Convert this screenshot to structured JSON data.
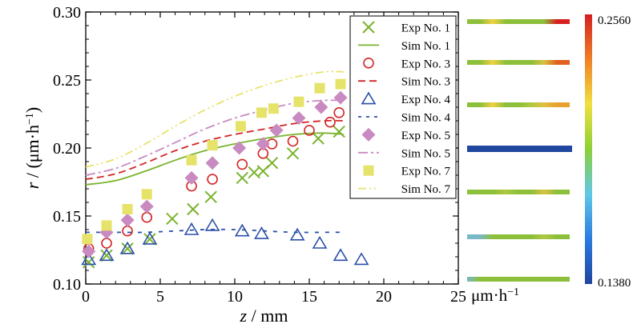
{
  "chart_data": {
    "type": "scatter",
    "xlabel_var": "z",
    "xlabel_unit": " / mm",
    "ylabel_var": "r",
    "ylabel_unit": " / (μm·h",
    "ylabel_unit_sup": "−1",
    "ylabel_unit_close": ")",
    "xlim": [
      0,
      25
    ],
    "ylim": [
      0.1,
      0.3
    ],
    "x_ticks": [
      "0",
      "5",
      "10",
      "15",
      "20",
      "25"
    ],
    "y_ticks": [
      "0.10",
      "0.15",
      "0.20",
      "0.25",
      "0.30"
    ],
    "grid": false,
    "legend_position": "top-right",
    "series": [
      {
        "name": "Exp No. 1",
        "kind": "exp",
        "marker": "x",
        "color": "#7ab32e",
        "x": [
          0.2,
          1.4,
          2.8,
          4.3,
          5.8,
          7.2,
          8.4,
          10.5,
          11.3,
          11.9,
          12.5,
          13.9,
          15.6,
          17.0
        ],
        "y": [
          0.116,
          0.121,
          0.126,
          0.133,
          0.148,
          0.155,
          0.164,
          0.178,
          0.182,
          0.183,
          0.189,
          0.196,
          0.207,
          0.212
        ]
      },
      {
        "name": "Sim No. 1",
        "kind": "sim",
        "dash": "",
        "color": "#7ab32e",
        "x": [
          0,
          2,
          4,
          6,
          8,
          10,
          12,
          14,
          16,
          17.3
        ],
        "y": [
          0.173,
          0.176,
          0.183,
          0.191,
          0.198,
          0.203,
          0.207,
          0.21,
          0.211,
          0.21
        ]
      },
      {
        "name": "Exp No. 3",
        "kind": "exp",
        "marker": "circle",
        "color": "#d42424",
        "x": [
          0.2,
          1.4,
          2.8,
          4.1,
          7.1,
          8.5,
          10.5,
          11.9,
          12.5,
          13.9,
          15.0,
          16.4,
          17.0
        ],
        "y": [
          0.126,
          0.13,
          0.139,
          0.149,
          0.172,
          0.177,
          0.188,
          0.196,
          0.203,
          0.205,
          0.213,
          0.219,
          0.226
        ]
      },
      {
        "name": "Sim No. 3",
        "kind": "sim",
        "dash": "9 5",
        "color": "#d42424",
        "x": [
          0,
          2,
          4,
          6,
          8,
          10,
          12,
          14,
          16,
          17.3
        ],
        "y": [
          0.177,
          0.181,
          0.189,
          0.198,
          0.205,
          0.21,
          0.214,
          0.218,
          0.22,
          0.22
        ]
      },
      {
        "name": "Exp No. 4",
        "kind": "exp",
        "marker": "triangle",
        "color": "#2a4fa8",
        "x": [
          0.2,
          1.4,
          2.8,
          4.3,
          7.1,
          8.5,
          10.5,
          11.8,
          14.2,
          15.7,
          17.1,
          18.5
        ],
        "y": [
          0.118,
          0.121,
          0.126,
          0.133,
          0.14,
          0.143,
          0.139,
          0.137,
          0.136,
          0.13,
          0.121,
          0.118
        ]
      },
      {
        "name": "Sim No. 4",
        "kind": "sim",
        "dash": "5 8",
        "color": "#2a4fa8",
        "x": [
          0,
          2,
          4,
          6,
          8,
          10,
          12,
          14,
          16,
          17.3
        ],
        "y": [
          0.138,
          0.138,
          0.138,
          0.139,
          0.14,
          0.14,
          0.139,
          0.138,
          0.138,
          0.138
        ]
      },
      {
        "name": "Exp No. 5",
        "kind": "exp",
        "marker": "diamond",
        "color": "#c88ac0",
        "x": [
          0.2,
          1.4,
          2.8,
          4.1,
          7.1,
          8.5,
          10.3,
          11.9,
          12.8,
          14.3,
          15.8,
          17.1
        ],
        "y": [
          0.124,
          0.138,
          0.147,
          0.157,
          0.178,
          0.189,
          0.2,
          0.203,
          0.213,
          0.222,
          0.23,
          0.237
        ]
      },
      {
        "name": "Sim No. 5",
        "kind": "sim",
        "dash": "12 4 3 4",
        "color": "#c88ac0",
        "x": [
          0,
          2,
          4,
          6,
          8,
          10,
          12,
          14,
          16,
          17.3
        ],
        "y": [
          0.18,
          0.185,
          0.194,
          0.204,
          0.214,
          0.222,
          0.228,
          0.233,
          0.235,
          0.235
        ]
      },
      {
        "name": "Exp No. 7",
        "kind": "exp",
        "marker": "square",
        "color": "#e6e36a",
        "x": [
          0.1,
          1.4,
          2.8,
          4.1,
          7.1,
          8.5,
          10.4,
          11.8,
          12.6,
          14.3,
          15.7,
          17.1
        ],
        "y": [
          0.133,
          0.143,
          0.155,
          0.166,
          0.191,
          0.202,
          0.216,
          0.226,
          0.229,
          0.234,
          0.244,
          0.247
        ]
      },
      {
        "name": "Sim No. 7",
        "kind": "sim",
        "dash": "10 4 2 4 2 4",
        "color": "#e6e36a",
        "x": [
          0,
          2,
          4,
          6,
          8,
          10,
          12,
          14,
          16,
          17.3
        ],
        "y": [
          0.186,
          0.192,
          0.203,
          0.216,
          0.228,
          0.238,
          0.246,
          0.252,
          0.256,
          0.256
        ]
      }
    ],
    "colorbar": {
      "max_label": "0.2560",
      "min_label": "0.1380",
      "unit_label": "μm·h",
      "unit_sup": "−1",
      "max": 0.256,
      "min": 0.138,
      "stops": [
        "#2045a0",
        "#2a7be0",
        "#60c8e8",
        "#8cd038",
        "#f0e040",
        "#f08028",
        "#d42020"
      ]
    },
    "color_strips": [
      {
        "colors": [
          "#8cbf3a",
          "#8cbf3a",
          "#f0d040",
          "#8cbf3a",
          "#8cbf3a",
          "#8cbf3a",
          "#8cbf3a",
          "#d82020",
          "#d82020"
        ]
      },
      {
        "colors": [
          "#8cbf3a",
          "#8cbf3a",
          "#f0d040",
          "#8cbf3a",
          "#8cbf3a",
          "#8cbf3a",
          "#d8c040",
          "#e06020",
          "#e06020"
        ]
      },
      {
        "colors": [
          "#8cbf3a",
          "#8cbf3a",
          "#f0d040",
          "#8cbf3a",
          "#8cbf3a",
          "#b0c840",
          "#e0c040",
          "#e8a030",
          "#e8a030"
        ]
      },
      {
        "colors": [
          "#2048a0",
          "#2048a0",
          "#2048a0",
          "#2048a0",
          "#2048a0",
          "#2048a0",
          "#2048a0",
          "#2048a0",
          "#2048a0"
        ]
      },
      {
        "colors": [
          "#8cbf3a",
          "#8cbf3a",
          "#8cbf3a",
          "#b0c840",
          "#8cbf3a",
          "#8cbf3a",
          "#d8c040",
          "#8cbf3a",
          "#8cbf3a"
        ]
      },
      {
        "colors": [
          "#7ab8c8",
          "#7ab8c8",
          "#8cbf3a",
          "#8cbf3a",
          "#8cbf3a",
          "#8cbf3a",
          "#b0c840",
          "#8cbf3a",
          "#8cbf3a"
        ]
      },
      {
        "colors": [
          "#7ab8c8",
          "#8cbf3a",
          "#8cbf3a",
          "#8cbf3a",
          "#8cbf3a",
          "#8cbf3a",
          "#8cbf3a",
          "#8cbf3a",
          "#8cbf3a"
        ]
      }
    ]
  }
}
